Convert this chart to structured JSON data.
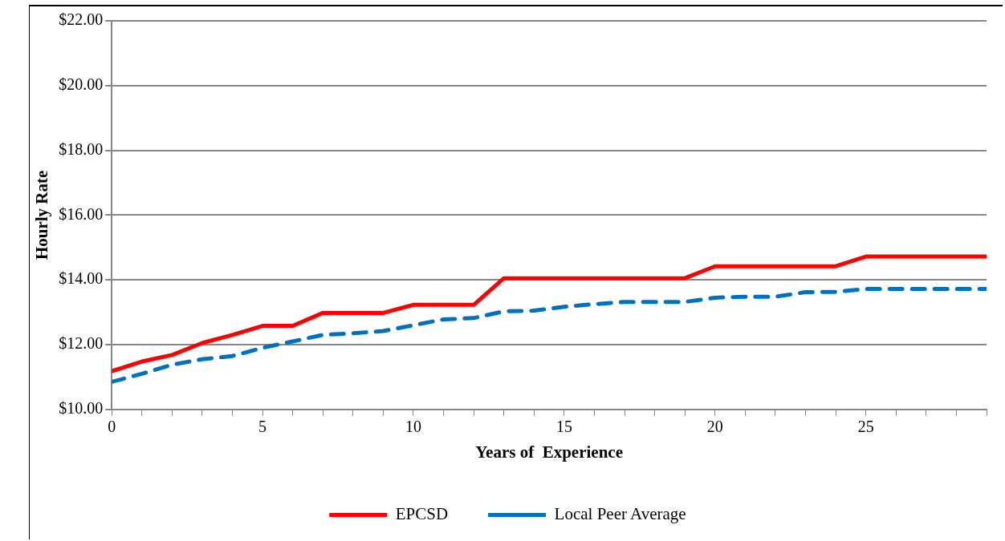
{
  "chart_data": {
    "type": "line",
    "xlabel": "Years of  Experience",
    "ylabel": "Hourly Rate",
    "x": [
      0,
      1,
      2,
      3,
      4,
      5,
      6,
      7,
      8,
      9,
      10,
      11,
      12,
      13,
      14,
      15,
      16,
      17,
      18,
      19,
      20,
      21,
      22,
      23,
      24,
      25,
      26,
      27,
      28,
      29
    ],
    "series": [
      {
        "name": "EPCSD",
        "color": "#ff0000",
        "line_style": "solid",
        "values": [
          11.18,
          11.48,
          11.68,
          12.05,
          12.3,
          12.58,
          12.58,
          12.98,
          12.98,
          12.98,
          13.23,
          13.23,
          13.23,
          14.05,
          14.05,
          14.05,
          14.05,
          14.05,
          14.05,
          14.05,
          14.42,
          14.42,
          14.42,
          14.42,
          14.42,
          14.72,
          14.72,
          14.72,
          14.72,
          14.72
        ]
      },
      {
        "name": "Local Peer Average",
        "color": "#0070c0",
        "line_style": "dashed",
        "values": [
          10.85,
          11.1,
          11.38,
          11.55,
          11.65,
          11.9,
          12.1,
          12.3,
          12.35,
          12.42,
          12.6,
          12.78,
          12.82,
          13.03,
          13.05,
          13.17,
          13.25,
          13.32,
          13.32,
          13.32,
          13.45,
          13.48,
          13.48,
          13.62,
          13.63,
          13.72,
          13.72,
          13.72,
          13.72,
          13.72
        ]
      }
    ],
    "xlim": [
      0,
      29
    ],
    "xticks": [
      0,
      {
        "value": 1,
        "label": null
      },
      {
        "value": 2,
        "label": null
      },
      {
        "value": 3,
        "label": null
      },
      {
        "value": 4,
        "label": null
      },
      5,
      {
        "value": 6,
        "label": null
      },
      {
        "value": 7,
        "label": null
      },
      {
        "value": 8,
        "label": null
      },
      {
        "value": 9,
        "label": null
      },
      10,
      {
        "value": 11,
        "label": null
      },
      {
        "value": 12,
        "label": null
      },
      {
        "value": 13,
        "label": null
      },
      {
        "value": 14,
        "label": null
      },
      15,
      {
        "value": 16,
        "label": null
      },
      {
        "value": 17,
        "label": null
      },
      {
        "value": 18,
        "label": null
      },
      {
        "value": 19,
        "label": null
      },
      20,
      {
        "value": 21,
        "label": null
      },
      {
        "value": 22,
        "label": null
      },
      {
        "value": 23,
        "label": null
      },
      {
        "value": 24,
        "label": null
      },
      25,
      {
        "value": 26,
        "label": null
      },
      {
        "value": 27,
        "label": null
      },
      {
        "value": 28,
        "label": null
      },
      {
        "value": 29,
        "label": null
      }
    ],
    "ylim": [
      10,
      22
    ],
    "yticks": [
      {
        "value": 10,
        "label": "$10.00"
      },
      {
        "value": 12,
        "label": "$12.00"
      },
      {
        "value": 14,
        "label": "$14.00"
      },
      {
        "value": 16,
        "label": "$16.00"
      },
      {
        "value": 18,
        "label": "$18.00"
      },
      {
        "value": 20,
        "label": "$20.00"
      },
      {
        "value": 22,
        "label": "$22.00"
      }
    ],
    "grid": "y",
    "legend": "bottom",
    "marker": "none"
  }
}
